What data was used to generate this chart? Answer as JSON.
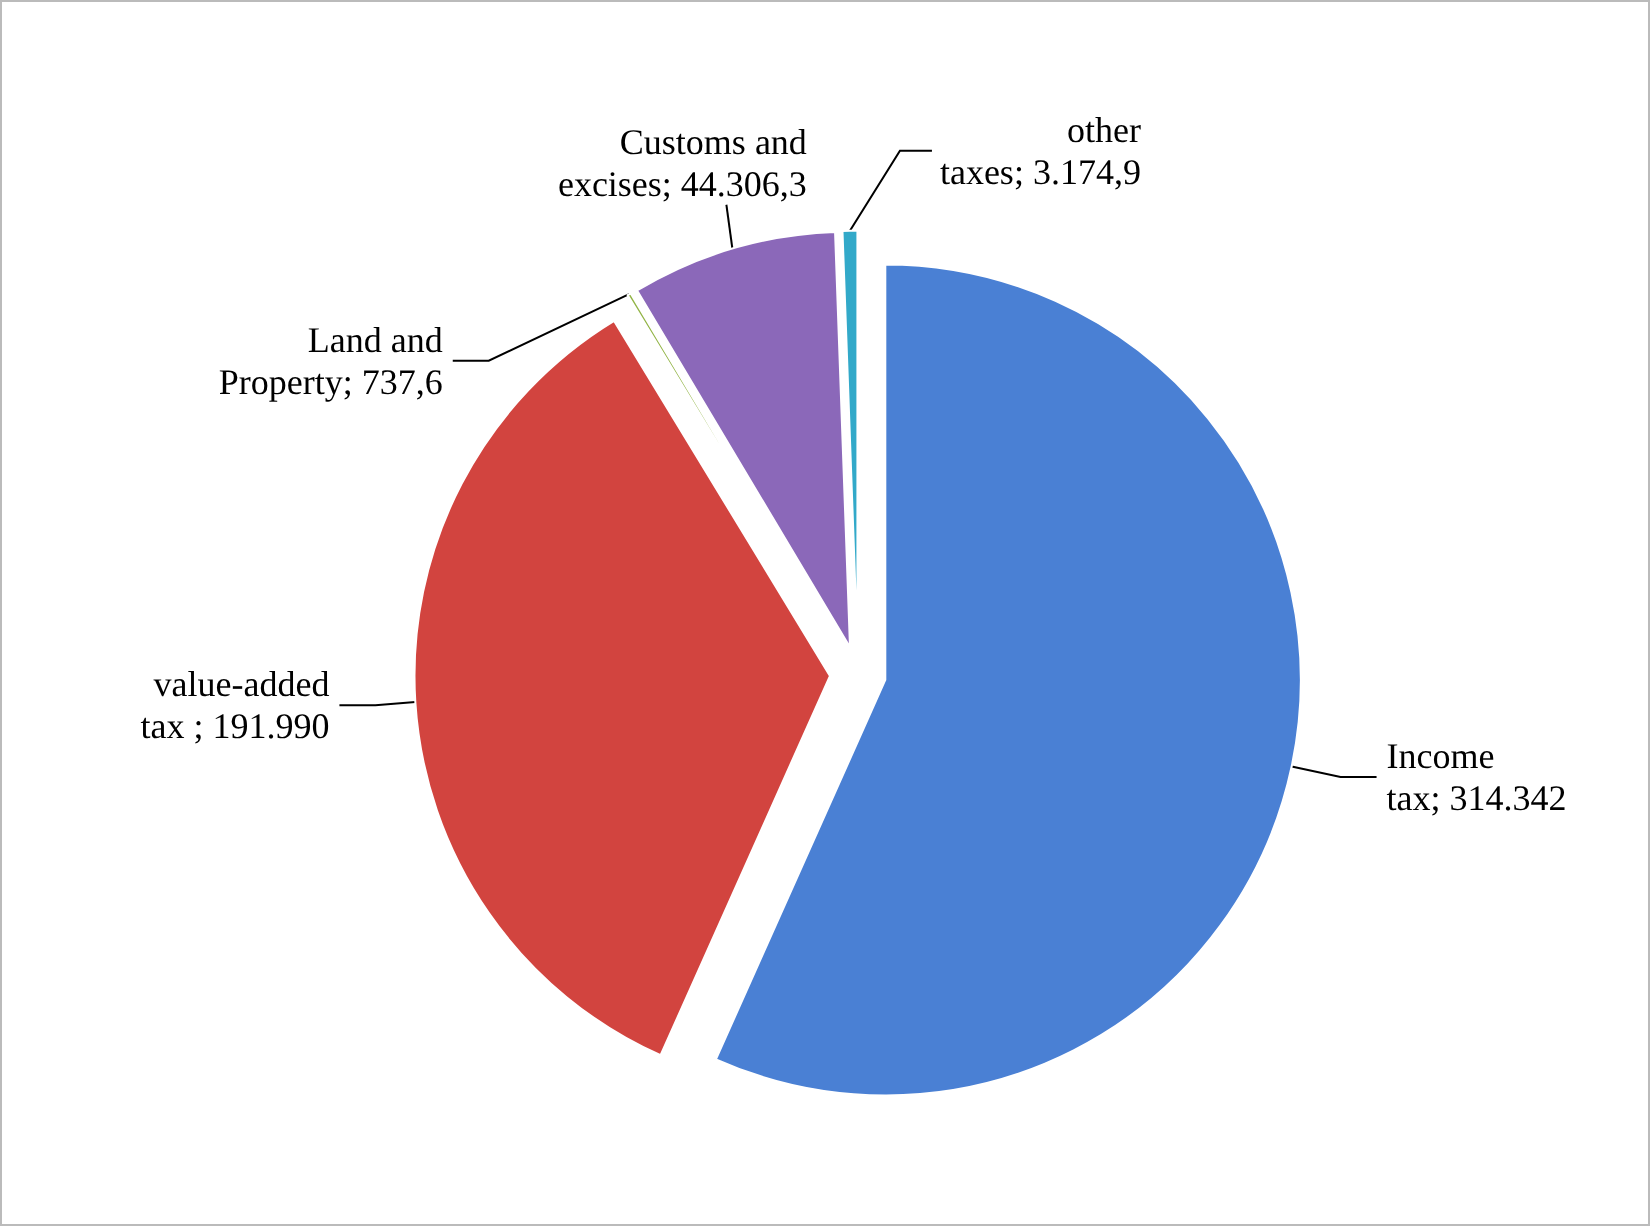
{
  "chart_data": {
    "type": "pie",
    "categories": [
      "Income tax",
      "value-added tax ",
      "Land and Property",
      "Customs and excises",
      "other taxes"
    ],
    "values": [
      314342,
      191990,
      737.6,
      44306.3,
      3174.9
    ],
    "value_labels": [
      "314.342",
      "191.990",
      "737,6",
      "44.306,3",
      "3.174,9"
    ],
    "colors": [
      "#4a80d4",
      "#d2443f",
      "#92b446",
      "#8b68b9",
      "#32a9c9"
    ],
    "legend": false
  }
}
